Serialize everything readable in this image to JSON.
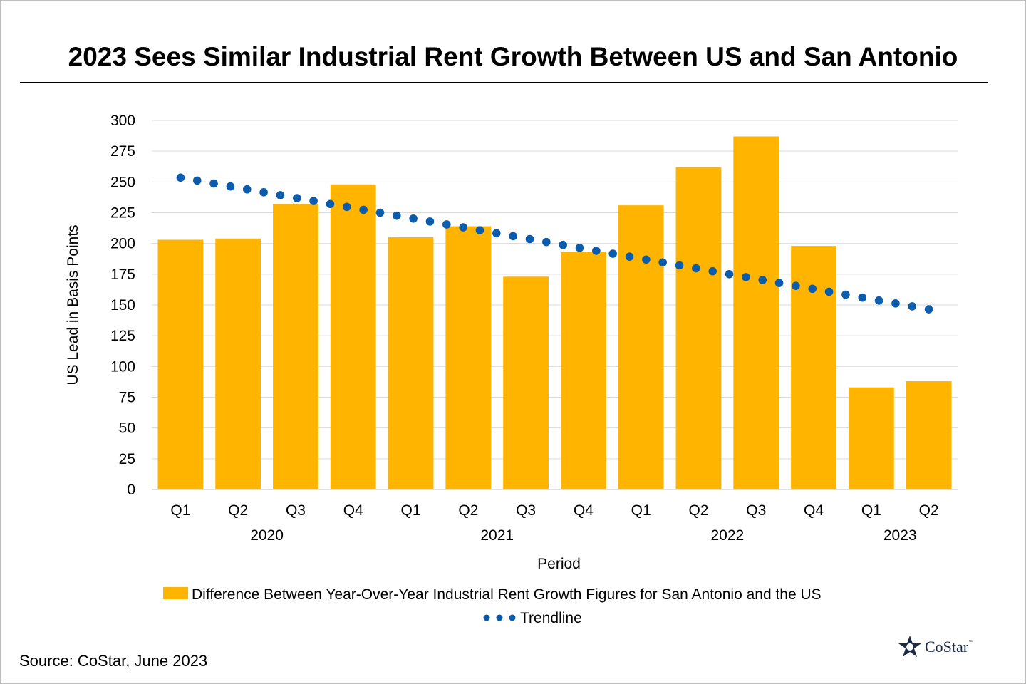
{
  "title": "2023 Sees Similar Industrial Rent Growth Between US and San Antonio",
  "source": "Source: CoStar, June 2023",
  "logo": {
    "text": "CoStar",
    "tm": "™"
  },
  "colors": {
    "bar": "#FFB500",
    "trend": "#0B5CAD",
    "grid": "#D9D9D9",
    "axis": "#BFBFBF"
  },
  "chart_data": {
    "type": "bar",
    "title": "2023 Sees Similar Industrial Rent Growth Between US and San Antonio",
    "xlabel": "Period",
    "ylabel": "US Lead in Basis Points",
    "ylim": [
      0,
      300
    ],
    "yticks": [
      0,
      25,
      50,
      75,
      100,
      125,
      150,
      175,
      200,
      225,
      250,
      275,
      300
    ],
    "grid": true,
    "categories": [
      "Q1",
      "Q2",
      "Q3",
      "Q4",
      "Q1",
      "Q2",
      "Q3",
      "Q4",
      "Q1",
      "Q2",
      "Q3",
      "Q4",
      "Q1",
      "Q2"
    ],
    "groups": [
      {
        "label": "2020",
        "start": 0,
        "end": 3
      },
      {
        "label": "2021",
        "start": 4,
        "end": 7
      },
      {
        "label": "2022",
        "start": 8,
        "end": 11
      },
      {
        "label": "2023",
        "start": 12,
        "end": 13
      }
    ],
    "series": [
      {
        "name": "Difference Between Year-Over-Year Industrial Rent Growth Figures for San Antonio and the US",
        "type": "bar",
        "values": [
          203,
          204,
          232,
          248,
          205,
          214,
          173,
          193,
          231,
          262,
          287,
          198,
          83,
          88
        ]
      },
      {
        "name": "Trendline",
        "type": "dotted-line",
        "start": 253.5,
        "end": 146.5
      }
    ],
    "legend_position": "bottom"
  }
}
